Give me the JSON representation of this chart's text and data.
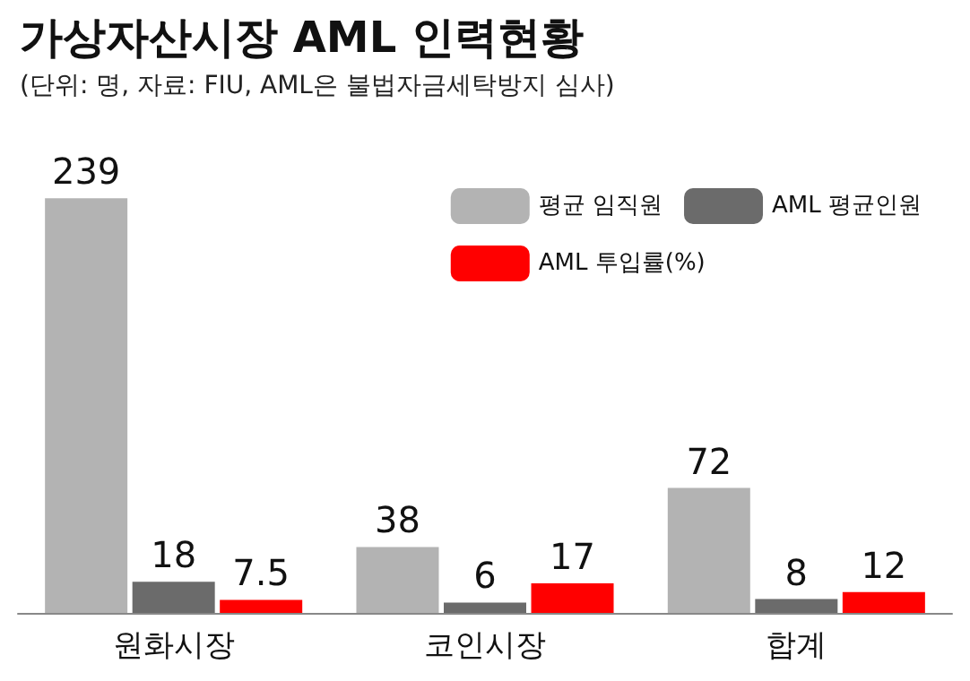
{
  "chart_data": {
    "type": "bar",
    "title": "가상자산시장 AML 인력현황",
    "subtitle": "(단위: 명, 자료: FIU, AML은 불법자금세탁방지 심사)",
    "categories": [
      "원화시장",
      "코인시장",
      "합계"
    ],
    "series": [
      {
        "name": "평균 임직원",
        "color": "#b3b3b3",
        "values": [
          239,
          38,
          72
        ]
      },
      {
        "name": "AML 평균인원",
        "color": "#6b6b6b",
        "values": [
          18,
          6,
          8
        ]
      },
      {
        "name": "AML 투입률(%)",
        "color": "#ff0000",
        "values": [
          7.5,
          17,
          12
        ]
      }
    ],
    "data_labels": true,
    "legend": "top right"
  }
}
